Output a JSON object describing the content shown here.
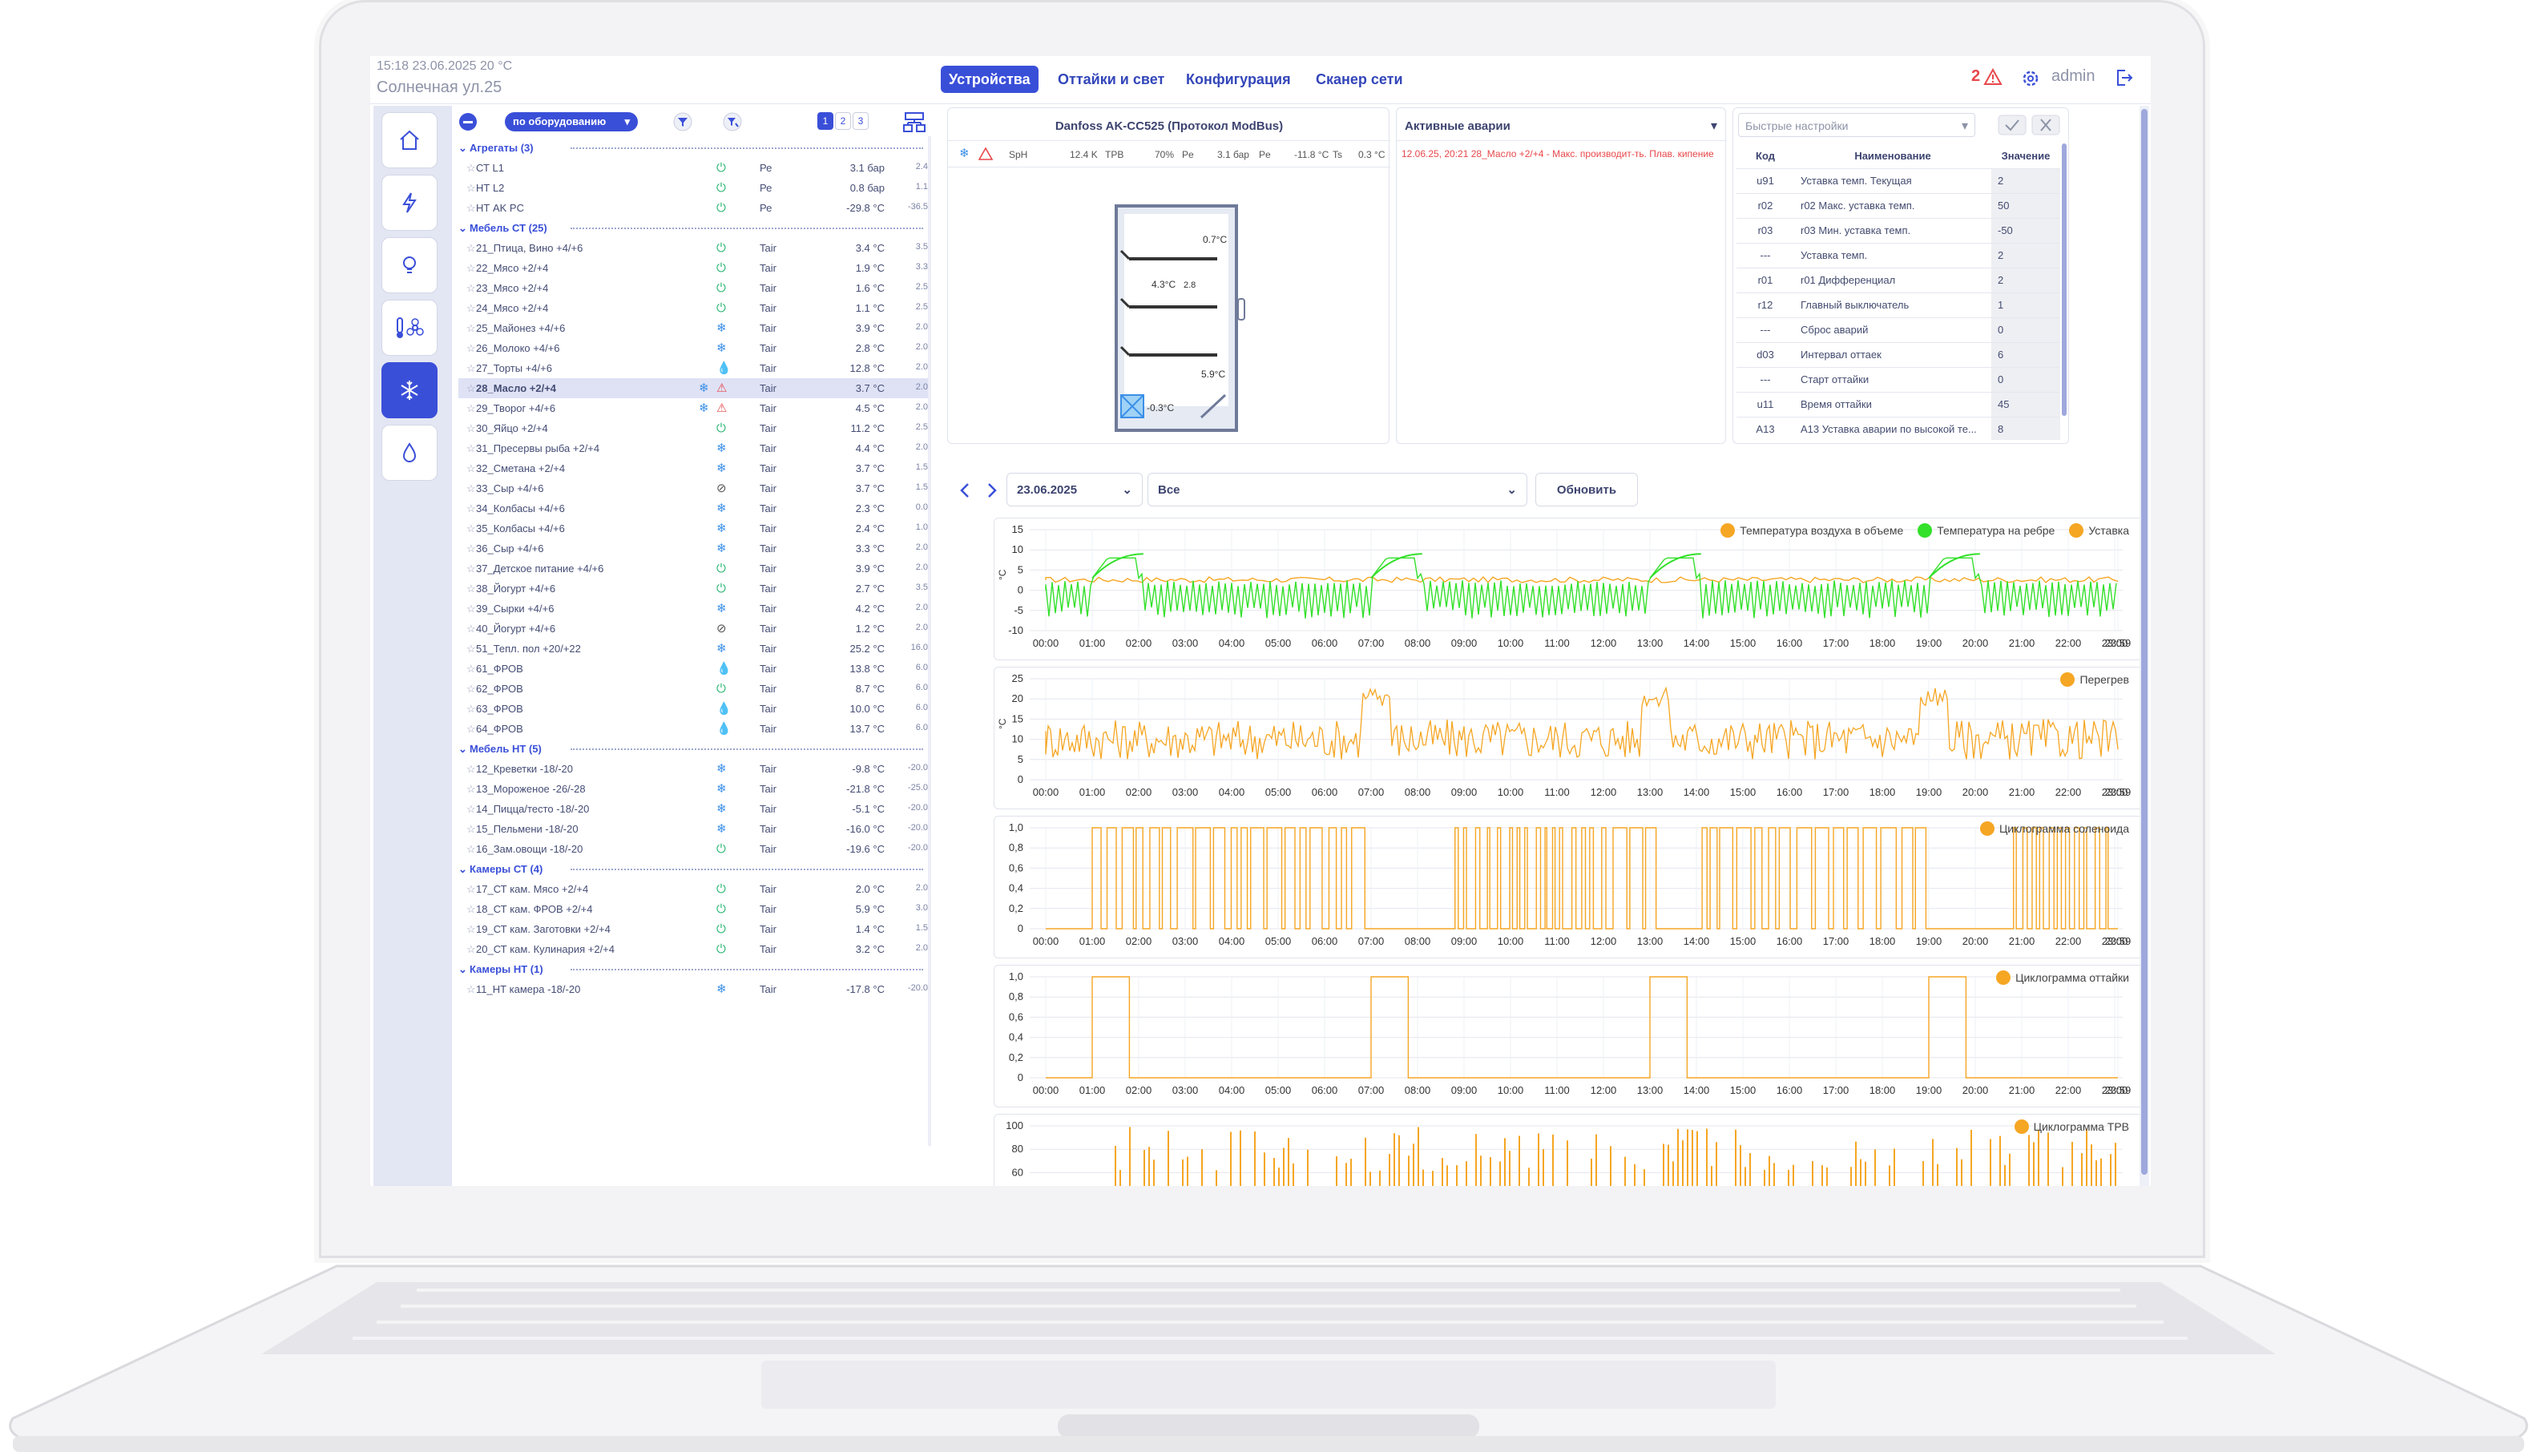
{
  "header": {
    "status_line": "15:18  23.06.2025  20 °C",
    "address": "Солнечная ул.25",
    "tabs": [
      "Устройства",
      "Оттайки и свет",
      "Конфигурация",
      "Сканер сети"
    ],
    "alarm_count": "2",
    "user": "admin"
  },
  "toolbar": {
    "grouping": "по оборудованию",
    "pages": [
      "1",
      "2",
      "3"
    ]
  },
  "groups": [
    {
      "title": "Агрегаты (3)",
      "items": [
        {
          "name": "СТ L1",
          "icon": "power",
          "param": "Ре",
          "value": "3.1 бар",
          "small": "2.4"
        },
        {
          "name": "НТ L2",
          "icon": "power",
          "param": "Ре",
          "value": "0.8 бар",
          "small": "1.1"
        },
        {
          "name": "НТ AK PC",
          "icon": "power",
          "param": "Ре",
          "value": "-29.8 °C",
          "small": "-36.5"
        }
      ]
    },
    {
      "title": "Мебель СТ (25)",
      "items": [
        {
          "name": "21_Птица, Вино +4/+6",
          "icon": "power",
          "param": "Tair",
          "value": "3.4 °C",
          "small": "3.5"
        },
        {
          "name": "22_Мясо +2/+4",
          "icon": "power",
          "param": "Tair",
          "value": "1.9 °C",
          "small": "3.3"
        },
        {
          "name": "23_Мясо +2/+4",
          "icon": "power",
          "param": "Tair",
          "value": "1.6 °C",
          "small": "2.5"
        },
        {
          "name": "24_Мясо +2/+4",
          "icon": "power",
          "param": "Tair",
          "value": "1.1 °C",
          "small": "2.5"
        },
        {
          "name": "25_Майонез +4/+6",
          "icon": "snow",
          "param": "Tair",
          "value": "3.9 °C",
          "small": "2.0"
        },
        {
          "name": "26_Молоко +4/+6",
          "icon": "snow",
          "param": "Tair",
          "value": "2.8 °C",
          "small": "2.0"
        },
        {
          "name": "27_Торты +4/+6",
          "icon": "drop",
          "param": "Tair",
          "value": "12.8 °C",
          "small": "2.0"
        },
        {
          "name": "28_Масло +2/+4",
          "icon": "snow",
          "alarm": true,
          "selected": true,
          "param": "Tair",
          "value": "3.7 °C",
          "small": "2.0"
        },
        {
          "name": "29_Творог +4/+6",
          "icon": "snow",
          "alarm": true,
          "param": "Tair",
          "value": "4.5 °C",
          "small": "2.0"
        },
        {
          "name": "30_Яйцо +2/+4",
          "icon": "power",
          "param": "Tair",
          "value": "11.2 °C",
          "small": "2.5"
        },
        {
          "name": "31_Пресервы рыба +2/+4",
          "icon": "snow",
          "param": "Tair",
          "value": "4.4 °C",
          "small": "2.0"
        },
        {
          "name": "32_Сметана +2/+4",
          "icon": "snow",
          "param": "Tair",
          "value": "3.7 °C",
          "small": "1.5"
        },
        {
          "name": "33_Сыр +4/+6",
          "icon": "off",
          "param": "Tair",
          "value": "3.7 °C",
          "small": "1.5"
        },
        {
          "name": "34_Колбасы +4/+6",
          "icon": "snow",
          "param": "Tair",
          "value": "2.3 °C",
          "small": "0.0"
        },
        {
          "name": "35_Колбасы +4/+6",
          "icon": "snow",
          "param": "Tair",
          "value": "2.4 °C",
          "small": "1.0"
        },
        {
          "name": "36_Сыр +4/+6",
          "icon": "snow",
          "param": "Tair",
          "value": "3.3 °C",
          "small": "2.0"
        },
        {
          "name": "37_Детское питание +4/+6",
          "icon": "power",
          "param": "Tair",
          "value": "3.9 °C",
          "small": "2.0"
        },
        {
          "name": "38_Йогурт +4/+6",
          "icon": "power",
          "param": "Tair",
          "value": "2.7 °C",
          "small": "3.5"
        },
        {
          "name": "39_Сырки +4/+6",
          "icon": "snow",
          "param": "Tair",
          "value": "4.2 °C",
          "small": "2.0"
        },
        {
          "name": "40_Йогурт +4/+6",
          "icon": "off",
          "param": "Tair",
          "value": "1.2 °C",
          "small": "2.0"
        },
        {
          "name": "51_Тепл. пол +20/+22",
          "icon": "snow",
          "param": "Tair",
          "value": "25.2 °C",
          "small": "16.0"
        },
        {
          "name": "61_ФРОВ",
          "icon": "drop",
          "param": "Tair",
          "value": "13.8 °C",
          "small": "6.0"
        },
        {
          "name": "62_ФРОВ",
          "icon": "power",
          "param": "Tair",
          "value": "8.7 °C",
          "small": "6.0"
        },
        {
          "name": "63_ФРОВ",
          "icon": "drop",
          "param": "Tair",
          "value": "10.0 °C",
          "small": "6.0"
        },
        {
          "name": "64_ФРОВ",
          "icon": "drop",
          "param": "Tair",
          "value": "13.7 °C",
          "small": "6.0"
        }
      ]
    },
    {
      "title": "Мебель НТ (5)",
      "items": [
        {
          "name": "12_Креветки -18/-20",
          "icon": "snow",
          "param": "Tair",
          "value": "-9.8 °C",
          "small": "-20.0"
        },
        {
          "name": "13_Мороженое -26/-28",
          "icon": "snow",
          "param": "Tair",
          "value": "-21.8 °C",
          "small": "-25.0"
        },
        {
          "name": "14_Пицца/тесто -18/-20",
          "icon": "snow",
          "param": "Tair",
          "value": "-5.1 °C",
          "small": "-20.0"
        },
        {
          "name": "15_Пельмени -18/-20",
          "icon": "snow",
          "param": "Tair",
          "value": "-16.0 °C",
          "small": "-20.0"
        },
        {
          "name": "16_Зам.овощи -18/-20",
          "icon": "power",
          "param": "Tair",
          "value": "-19.6 °C",
          "small": "-20.0"
        }
      ]
    },
    {
      "title": "Камеры СТ (4)",
      "items": [
        {
          "name": "17_СТ кам. Мясо +2/+4",
          "icon": "power",
          "param": "Tair",
          "value": "2.0 °C",
          "small": "2.0"
        },
        {
          "name": "18_СТ кам. ФРОВ +2/+4",
          "icon": "power",
          "param": "Tair",
          "value": "5.9 °C",
          "small": "3.0"
        },
        {
          "name": "19_СТ кам. Заготовки +2/+4",
          "icon": "power",
          "param": "Tair",
          "value": "1.4 °C",
          "small": "1.5"
        },
        {
          "name": "20_СТ кам. Кулинария +2/+4",
          "icon": "power",
          "param": "Tair",
          "value": "3.2 °C",
          "small": "2.0"
        }
      ]
    },
    {
      "title": "Камеры НТ (1)",
      "items": [
        {
          "name": "11_НТ камера -18/-20",
          "icon": "snow",
          "param": "Tair",
          "value": "-17.8 °C",
          "small": "-20.0"
        }
      ]
    }
  ],
  "device": {
    "title": "Danfoss AK-CC525 (Протокол ModBus)",
    "params": [
      {
        "label": "SpH",
        "value": "12.4 K"
      },
      {
        "label": "ТРВ",
        "value": "70%"
      },
      {
        "label": "Pe",
        "value": "3.1 бар"
      },
      {
        "label": "Pe",
        "value": "-11.8 °C"
      },
      {
        "label": "Ts",
        "value": "0.3 °C"
      }
    ],
    "cabinet": {
      "top": "0.7°C",
      "mid": "4.3°C",
      "mid_unit": "2.8",
      "bottom": "5.9°C",
      "evap": "-0.3°C"
    }
  },
  "alarms": {
    "title": "Активные аварии",
    "items": [
      "12.06.25, 20:21  28_Масло +2/+4 - Макс. производит-ть. Плав. кипение"
    ]
  },
  "quick_settings": {
    "title": "Быстрые настройки",
    "headers": [
      "Код",
      "Наименование",
      "Значение"
    ],
    "rows": [
      [
        "u91",
        "Уставка темп. Текущая",
        "2"
      ],
      [
        "r02",
        "r02 Макс. уставка темп.",
        "50"
      ],
      [
        "r03",
        "r03 Мин. уставка темп.",
        "-50"
      ],
      [
        "---",
        "Уставка темп.",
        "2"
      ],
      [
        "r01",
        "r01 Дифференциал",
        "2"
      ],
      [
        "r12",
        "Главный выключатель",
        "1"
      ],
      [
        "---",
        "Сброс аварий",
        "0"
      ],
      [
        "d03",
        "Интервал оттаек",
        "6"
      ],
      [
        "---",
        "Старт оттайки",
        "0"
      ],
      [
        "u11",
        "Время оттайки",
        "45"
      ],
      [
        "A13",
        "A13 Уставка аварии по высокой те...",
        "8"
      ]
    ]
  },
  "chart_controls": {
    "date": "23.06.2025",
    "filter": "Все",
    "refresh": "Обновить"
  },
  "colors": {
    "accent": "#3a4fd8",
    "orange": "#f5a623",
    "green": "#33e02a",
    "alarm": "#e8474a"
  },
  "chart_data": [
    {
      "type": "line",
      "ylabel": "°C",
      "ylim": [
        -10,
        15
      ],
      "yticks": [
        "15",
        "10",
        "5",
        "0",
        "-5",
        "-10"
      ],
      "x": [
        "00:00",
        "01:00",
        "02:00",
        "03:00",
        "04:00",
        "05:00",
        "06:00",
        "07:00",
        "08:00",
        "09:00",
        "10:00",
        "11:00",
        "12:00",
        "13:00",
        "14:00",
        "15:00",
        "16:00",
        "17:00",
        "18:00",
        "19:00",
        "20:00",
        "21:00",
        "22:00",
        "23:00",
        "23:59"
      ],
      "series": [
        {
          "name": "Температура воздуха в объеме",
          "color": "#f5a623"
        },
        {
          "name": "Температура на ребре",
          "color": "#33e02a"
        },
        {
          "name": "Уставка",
          "color": "#f5a623"
        }
      ],
      "defrost_hours": [
        1,
        7,
        13,
        19
      ]
    },
    {
      "type": "line",
      "ylabel": "°C",
      "ylim": [
        0,
        25
      ],
      "yticks": [
        "25",
        "20",
        "15",
        "10",
        "5",
        "0"
      ],
      "x": [
        "00:00",
        "01:00",
        "02:00",
        "03:00",
        "04:00",
        "05:00",
        "06:00",
        "07:00",
        "08:00",
        "09:00",
        "10:00",
        "11:00",
        "12:00",
        "13:00",
        "14:00",
        "15:00",
        "16:00",
        "17:00",
        "18:00",
        "19:00",
        "20:00",
        "21:00",
        "22:00",
        "23:00",
        "23:59"
      ],
      "series": [
        {
          "name": "Перегрев",
          "color": "#f5a623"
        }
      ]
    },
    {
      "type": "line",
      "ylim": [
        0,
        1
      ],
      "yticks": [
        "1,0",
        "0,8",
        "0,6",
        "0,4",
        "0,2",
        "0"
      ],
      "x": [
        "00:00",
        "01:00",
        "02:00",
        "03:00",
        "04:00",
        "05:00",
        "06:00",
        "07:00",
        "08:00",
        "09:00",
        "10:00",
        "11:00",
        "12:00",
        "13:00",
        "14:00",
        "15:00",
        "16:00",
        "17:00",
        "18:00",
        "19:00",
        "20:00",
        "21:00",
        "22:00",
        "23:00",
        "23:59"
      ],
      "series": [
        {
          "name": "Циклограмма соленоида",
          "color": "#f5a623"
        }
      ]
    },
    {
      "type": "line",
      "ylim": [
        0,
        1
      ],
      "yticks": [
        "1,0",
        "0,8",
        "0,6",
        "0,4",
        "0,2",
        "0"
      ],
      "x": [
        "00:00",
        "01:00",
        "02:00",
        "03:00",
        "04:00",
        "05:00",
        "06:00",
        "07:00",
        "08:00",
        "09:00",
        "10:00",
        "11:00",
        "12:00",
        "13:00",
        "14:00",
        "15:00",
        "16:00",
        "17:00",
        "18:00",
        "19:00",
        "20:00",
        "21:00",
        "22:00",
        "23:00",
        "23:59"
      ],
      "series": [
        {
          "name": "Циклограмма оттайки",
          "color": "#f5a623"
        }
      ],
      "on_intervals": [
        [
          1.0,
          1.8
        ],
        [
          7.0,
          7.8
        ],
        [
          13.0,
          13.8
        ],
        [
          19.0,
          19.8
        ]
      ]
    },
    {
      "type": "line",
      "ylim": [
        0,
        100
      ],
      "yticks": [
        "100",
        "80",
        "60"
      ],
      "series": [
        {
          "name": "Циклограмма ТРВ",
          "color": "#f5a623"
        }
      ]
    }
  ]
}
